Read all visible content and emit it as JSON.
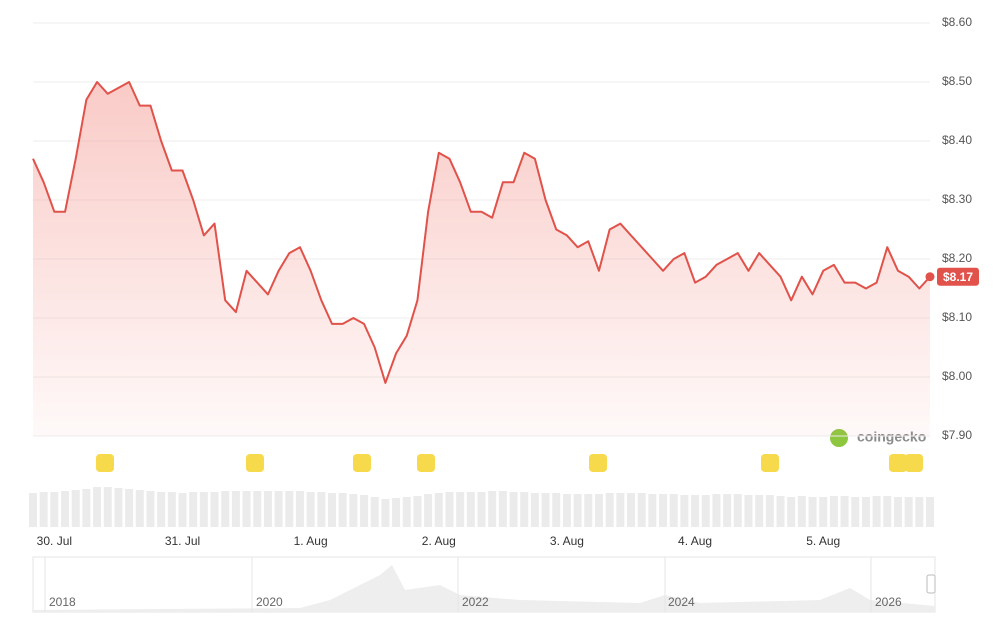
{
  "chart_data": {
    "type": "line",
    "series": [
      {
        "color": "#e0524a",
        "values": [
          8.37,
          8.33,
          8.28,
          8.28,
          8.37,
          8.47,
          8.5,
          8.48,
          8.49,
          8.5,
          8.46,
          8.46,
          8.4,
          8.35,
          8.35,
          8.3,
          8.24,
          8.26,
          8.13,
          8.11,
          8.18,
          8.16,
          8.14,
          8.18,
          8.21,
          8.22,
          8.18,
          8.13,
          8.09,
          8.09,
          8.1,
          8.09,
          8.05,
          7.99,
          8.04,
          8.07,
          8.13,
          8.28,
          8.38,
          8.37,
          8.33,
          8.28,
          8.28,
          8.27,
          8.33,
          8.33,
          8.38,
          8.37,
          8.3,
          8.25,
          8.24,
          8.22,
          8.23,
          8.18,
          8.25,
          8.26,
          8.24,
          8.22,
          8.2,
          8.18,
          8.2,
          8.21,
          8.16,
          8.17,
          8.19,
          8.2,
          8.21,
          8.18,
          8.21,
          8.19,
          8.17,
          8.13,
          8.17,
          8.14,
          8.18,
          8.19,
          8.16,
          8.16,
          8.15,
          8.16,
          8.22,
          8.18,
          8.17,
          8.15,
          8.17
        ],
        "value_labels": [
          null,
          null,
          null,
          null,
          null,
          null,
          null,
          null,
          null,
          null,
          null,
          null,
          null,
          null,
          null,
          null,
          null,
          null,
          null,
          null,
          null,
          null,
          null,
          null,
          null,
          null,
          null,
          null,
          null,
          null,
          null,
          null,
          null,
          null,
          null,
          null,
          null,
          null,
          null,
          null,
          null,
          null,
          null,
          null,
          null,
          null,
          null,
          null,
          null,
          null,
          null,
          null,
          null,
          null,
          null,
          null,
          null,
          null,
          null,
          null,
          null,
          null,
          null,
          null,
          null,
          null,
          null,
          null,
          null,
          null,
          null,
          null,
          null,
          null,
          null,
          null,
          null,
          null,
          null,
          null,
          null,
          null,
          null,
          null,
          "$8.17"
        ]
      }
    ],
    "volume": [
      34,
      35,
      35,
      36,
      37,
      38,
      40,
      40,
      39,
      38,
      37,
      36,
      35,
      35,
      34,
      35,
      35,
      35,
      36,
      36,
      36,
      36,
      36,
      36,
      36,
      36,
      35,
      35,
      34,
      34,
      33,
      32,
      30,
      28,
      29,
      30,
      31,
      33,
      34,
      35,
      35,
      35,
      35,
      36,
      36,
      35,
      35,
      34,
      34,
      34,
      33,
      33,
      33,
      33,
      34,
      34,
      34,
      34,
      33,
      33,
      33,
      32,
      32,
      32,
      33,
      33,
      33,
      32,
      32,
      32,
      31,
      30,
      31,
      30,
      30,
      31,
      31,
      30,
      30,
      31,
      31,
      30,
      30,
      30,
      30
    ],
    "ylim": [
      7.9,
      8.6
    ],
    "yticks": [
      {
        "value": 7.9,
        "label": "$7.90"
      },
      {
        "value": 8.0,
        "label": "$8.00"
      },
      {
        "value": 8.1,
        "label": "$8.10"
      },
      {
        "value": 8.2,
        "label": "$8.20"
      },
      {
        "value": 8.3,
        "label": "$8.30"
      },
      {
        "value": 8.4,
        "label": "$8.40"
      },
      {
        "value": 8.5,
        "label": "$8.50"
      },
      {
        "value": 8.6,
        "label": "$8.60"
      }
    ],
    "xticks": [
      {
        "value": 2,
        "label": "30. Jul"
      },
      {
        "value": 14,
        "label": "31. Jul"
      },
      {
        "value": 26,
        "label": "1. Aug"
      },
      {
        "value": 38,
        "label": "2. Aug"
      },
      {
        "value": 50,
        "label": "3. Aug"
      },
      {
        "value": 62,
        "label": "4. Aug"
      },
      {
        "value": 74,
        "label": "5. Aug"
      }
    ],
    "grid": true,
    "watermark": "coingecko",
    "navigator_years": [
      "2018",
      "2020",
      "2022",
      "2024",
      "2026"
    ]
  }
}
